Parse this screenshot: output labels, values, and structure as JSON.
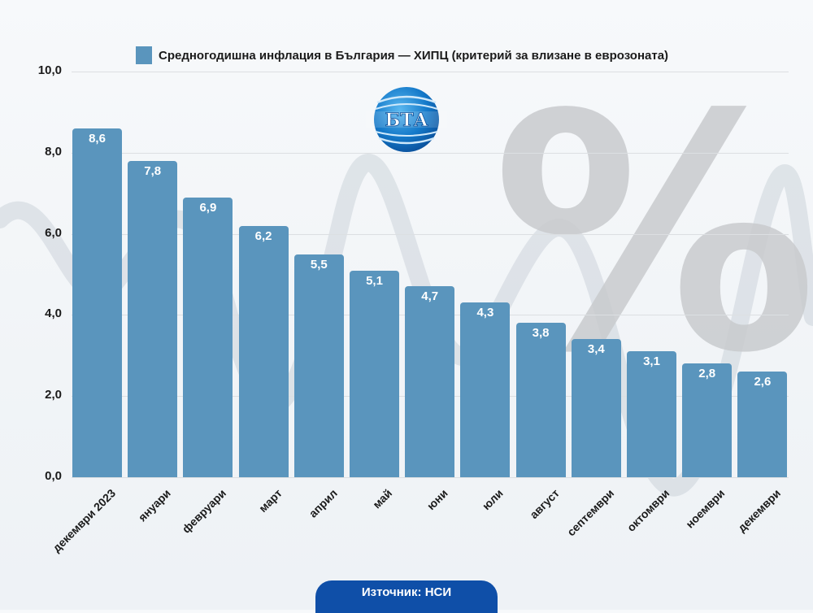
{
  "legend": {
    "label": "Средногодишна инфлация в България — ХИПЦ (критерий за влизане в еврозоната)",
    "color": "#5a95bd"
  },
  "watermark": "%",
  "logo": {
    "text": "БТА"
  },
  "source": "Източник: НСИ",
  "y_ticks": [
    "10,0",
    "8,0",
    "6,0",
    "4,0",
    "2,0",
    "0,0"
  ],
  "chart_data": {
    "type": "bar",
    "title": "Средногодишна инфлация в България — ХИПЦ (критерий за влизане в еврозоната)",
    "categories": [
      "декември 2023",
      "януари",
      "февруари",
      "март",
      "април",
      "май",
      "юни",
      "юли",
      "август",
      "септември",
      "октомври",
      "ноември",
      "декември"
    ],
    "values": [
      8.6,
      7.8,
      6.9,
      6.2,
      5.5,
      5.1,
      4.7,
      4.3,
      3.8,
      3.4,
      3.1,
      2.8,
      2.6
    ],
    "value_labels": [
      "8,6",
      "7,8",
      "6,9",
      "6,2",
      "5,5",
      "5,1",
      "4,7",
      "4,3",
      "3,8",
      "3,4",
      "3,1",
      "2,8",
      "2,6"
    ],
    "xlabel": "",
    "ylabel": "",
    "ylim": [
      0,
      10
    ],
    "yticks": [
      0,
      2,
      4,
      6,
      8,
      10
    ],
    "grid": true,
    "legend_position": "top",
    "bar_color": "#5a95bd",
    "source": "Източник: НСИ"
  }
}
